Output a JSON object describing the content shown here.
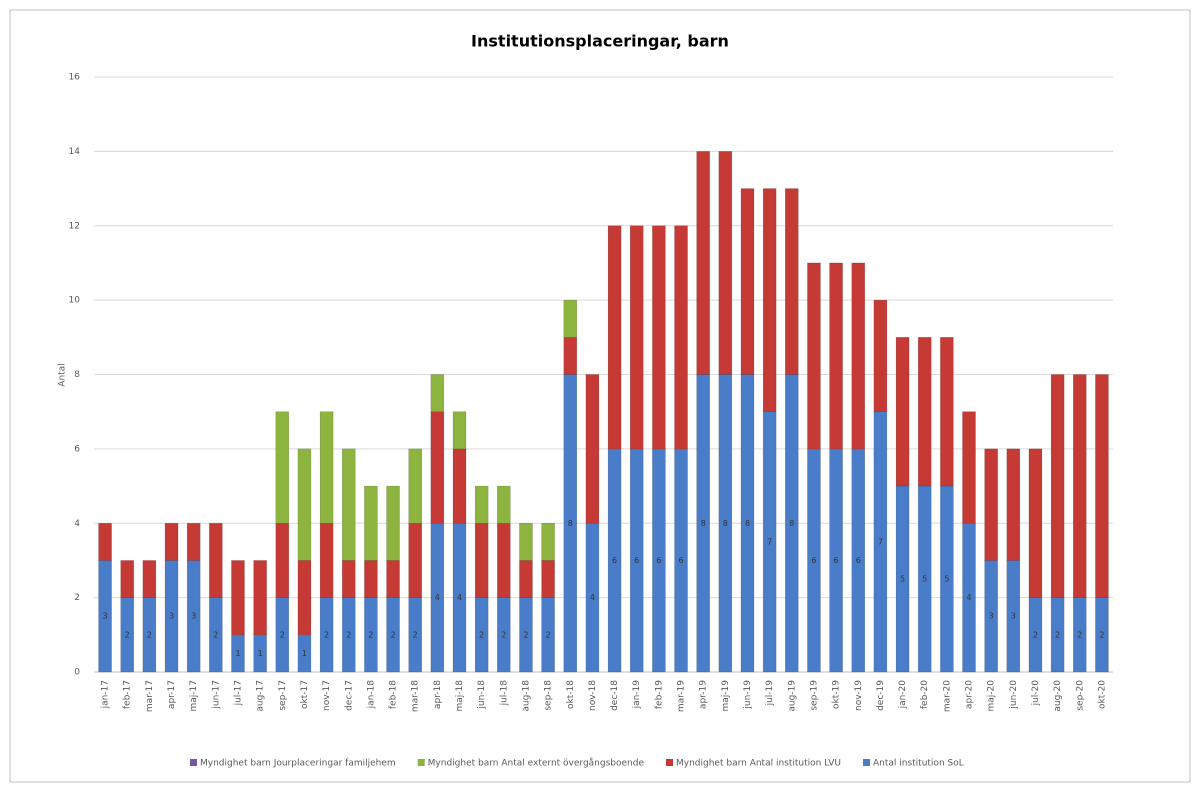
{
  "chart_data": {
    "type": "stacked_bar",
    "title": "Institutionsplaceringar, barn",
    "y_label": "Antal",
    "categories": [
      "jan-17",
      "feb-17",
      "mar-17",
      "apr-17",
      "maj-17",
      "jun-17",
      "jul-17",
      "aug-17",
      "sep-17",
      "okt-17",
      "nov-17",
      "dec-17",
      "jan-18",
      "feb-18",
      "mar-18",
      "apr-18",
      "maj-18",
      "jun-18",
      "jul-18",
      "aug-18",
      "sep-18",
      "okt-18",
      "nov-18",
      "dec-18",
      "jan-19",
      "feb-19",
      "mar-19",
      "apr-19",
      "maj-19",
      "jun-19",
      "jul-19",
      "aug-19",
      "sep-19",
      "okt-19",
      "nov-19",
      "dec-19",
      "jan-20",
      "feb-20",
      "mar-20",
      "apr-20",
      "maj-20",
      "jun-20",
      "jul-20",
      "aug-20",
      "sep-20",
      "okt-20"
    ],
    "series": [
      {
        "name": "Antal institution SoL",
        "color": "#4a7dc9",
        "show_labels": true,
        "values": [
          3,
          2,
          2,
          3,
          3,
          2,
          1,
          1,
          2,
          1,
          2,
          2,
          2,
          2,
          2,
          4,
          4,
          2,
          2,
          2,
          2,
          8,
          4,
          6,
          6,
          6,
          6,
          8,
          8,
          8,
          7,
          8,
          6,
          6,
          6,
          7,
          5,
          5,
          5,
          4,
          3,
          3,
          2,
          2,
          2,
          2
        ]
      },
      {
        "name": "Myndighet barn Antal institution LVU",
        "color": "#c63a36",
        "show_labels": false,
        "values": [
          1,
          1,
          1,
          1,
          1,
          2,
          2,
          2,
          2,
          2,
          2,
          1,
          1,
          1,
          2,
          3,
          2,
          2,
          2,
          1,
          1,
          1,
          4,
          6,
          6,
          6,
          6,
          6,
          6,
          5,
          6,
          5,
          5,
          5,
          5,
          3,
          4,
          4,
          4,
          3,
          3,
          3,
          4,
          6,
          6,
          6
        ]
      },
      {
        "name": "Myndighet barn Antal externt övergångsboende",
        "color": "#8db43f",
        "show_labels": false,
        "values": [
          0,
          0,
          0,
          0,
          0,
          0,
          0,
          0,
          3,
          3,
          3,
          3,
          2,
          2,
          2,
          1,
          1,
          1,
          1,
          1,
          1,
          1,
          0,
          0,
          0,
          0,
          0,
          0,
          0,
          0,
          0,
          0,
          0,
          0,
          0,
          0,
          0,
          0,
          0,
          0,
          0,
          0,
          0,
          0,
          0,
          0
        ]
      },
      {
        "name": "Myndighet barn Jourplaceringar familjehem",
        "color": "#7a57a6",
        "show_labels": false,
        "values": [
          0,
          0,
          0,
          0,
          0,
          0,
          0,
          0,
          0,
          0,
          0,
          0,
          0,
          0,
          0,
          0,
          0,
          0,
          0,
          0,
          0,
          0,
          0,
          0,
          0,
          0,
          0,
          0,
          0,
          0,
          0,
          0,
          0,
          0,
          0,
          0,
          0,
          0,
          0,
          0,
          0,
          0,
          0,
          0,
          0,
          0
        ]
      }
    ],
    "ylim": [
      0,
      16
    ],
    "yticks": [
      0,
      2,
      4,
      6,
      8,
      10,
      12,
      14,
      16
    ],
    "grid": true
  }
}
